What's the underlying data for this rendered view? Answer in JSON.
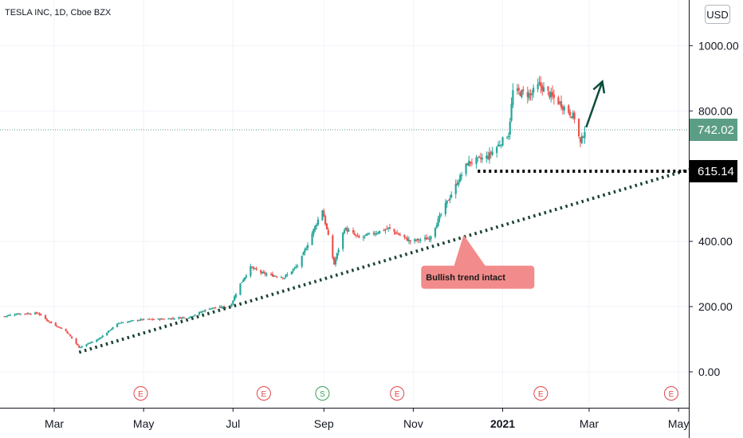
{
  "symbol": "TESLA INC, 1D, Cboe BZX",
  "currency": "USD",
  "colors": {
    "up": "#26a69a",
    "down": "#ef5350",
    "trendline": "#1b4332",
    "support": "#000000",
    "arrow": "#0b4d3c",
    "current_tag": "#5b9e85",
    "support_tag": "#000000",
    "annotation_bg": "#f28b8b",
    "earnings": "#e0474c",
    "split": "#3a9f5a"
  },
  "chart_data": {
    "type": "candlestick",
    "title": "TESLA INC, 1D, Cboe BZX",
    "y_axis": {
      "ticks": [
        "1000.00",
        "800.00",
        "400.00",
        "200.00",
        "0.00"
      ],
      "tick_values": [
        1000,
        800,
        400,
        200,
        0
      ],
      "range": [
        -110,
        1140
      ]
    },
    "x_axis": {
      "labels": [
        "Mar",
        "May",
        "Jul",
        "Sep",
        "Nov",
        "2021",
        "Mar",
        "May"
      ],
      "bold": [
        false,
        false,
        false,
        false,
        false,
        true,
        false,
        false
      ],
      "dates": [
        "2020-03-01",
        "2020-05-01",
        "2020-07-01",
        "2020-09-01",
        "2020-11-01",
        "2021-01-01",
        "2021-03-01",
        "2021-05-01"
      ],
      "range": [
        "2020-01-24",
        "2021-05-08"
      ]
    },
    "price_path": [
      [
        "2020-01-27",
        170
      ],
      [
        "2020-02-04",
        178
      ],
      [
        "2020-02-19",
        180
      ],
      [
        "2020-02-26",
        155
      ],
      [
        "2020-03-09",
        125
      ],
      [
        "2020-03-18",
        75
      ],
      [
        "2020-03-31",
        100
      ],
      [
        "2020-04-14",
        150
      ],
      [
        "2020-04-29",
        160
      ],
      [
        "2020-05-15",
        162
      ],
      [
        "2020-06-01",
        168
      ],
      [
        "2020-06-15",
        195
      ],
      [
        "2020-06-29",
        200
      ],
      [
        "2020-07-06",
        270
      ],
      [
        "2020-07-13",
        320
      ],
      [
        "2020-07-22",
        300
      ],
      [
        "2020-08-05",
        290
      ],
      [
        "2020-08-15",
        330
      ],
      [
        "2020-08-31",
        498
      ],
      [
        "2020-09-08",
        330
      ],
      [
        "2020-09-15",
        440
      ],
      [
        "2020-09-25",
        410
      ],
      [
        "2020-10-15",
        440
      ],
      [
        "2020-10-30",
        400
      ],
      [
        "2020-11-12",
        410
      ],
      [
        "2020-11-24",
        520
      ],
      [
        "2020-12-08",
        640
      ],
      [
        "2020-12-22",
        660
      ],
      [
        "2021-01-05",
        730
      ],
      [
        "2021-01-08",
        860
      ],
      [
        "2021-01-20",
        850
      ],
      [
        "2021-01-26",
        880
      ],
      [
        "2021-02-02",
        850
      ],
      [
        "2021-02-10",
        820
      ],
      [
        "2021-02-19",
        780
      ],
      [
        "2021-02-23",
        700
      ],
      [
        "2021-02-26",
        742
      ]
    ],
    "trendline": {
      "from": [
        "2020-03-18",
        60
      ],
      "to": [
        "2021-05-08",
        620
      ]
    },
    "support_line": {
      "from": [
        "2020-12-15",
        615.14
      ],
      "to": [
        "2021-05-08",
        615.14
      ]
    },
    "arrow": {
      "from": [
        "2021-02-27",
        750
      ],
      "to": [
        "2021-03-10",
        890
      ]
    },
    "current_price": "742.02",
    "current_price_value": 742.02,
    "support_price": "615.14",
    "support_price_value": 615.14,
    "annotation": {
      "text": "Bullish trend intact",
      "anchor": [
        "2020-12-01",
        420
      ],
      "box": [
        "2020-12-15",
        290
      ]
    },
    "events": [
      {
        "label": "E",
        "kind": "earnings",
        "date": "2020-04-29"
      },
      {
        "label": "E",
        "kind": "earnings",
        "date": "2020-07-22"
      },
      {
        "label": "S",
        "kind": "split",
        "date": "2020-08-31"
      },
      {
        "label": "E",
        "kind": "earnings",
        "date": "2020-10-21"
      },
      {
        "label": "E",
        "kind": "earnings",
        "date": "2021-01-27"
      },
      {
        "label": "E",
        "kind": "earnings",
        "date": "2021-04-26"
      }
    ]
  }
}
